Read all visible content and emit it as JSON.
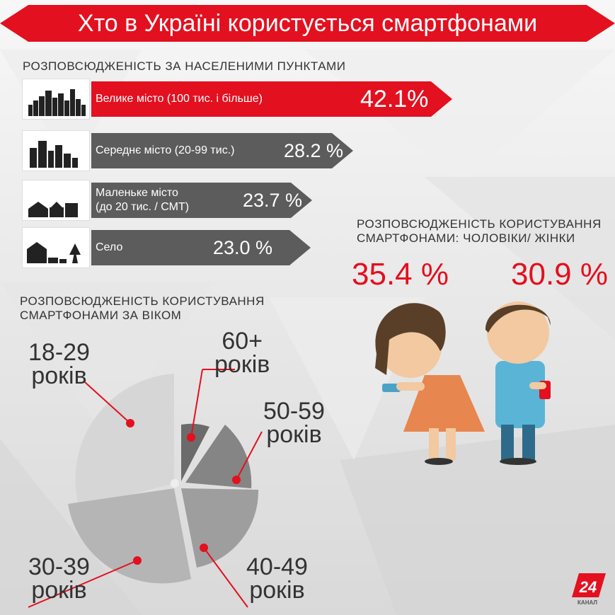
{
  "title": "Хто в Україні користується смартфонами",
  "settlements": {
    "heading": "РОЗПОВСЮДЖЕНІСТЬ ЗА НАСЕЛЕНИМИ ПУНКТАМИ",
    "items": [
      {
        "label_1": "Велике місто (100 тис. і більше)",
        "label_2": "",
        "value": "42.1%",
        "icon": "big-city-icon"
      },
      {
        "label_1": "Середнє місто (20-99 тис.)",
        "label_2": "",
        "value": "28.2 %",
        "icon": "medium-city-icon"
      },
      {
        "label_1": "Маленьке місто",
        "label_2": "(до 20 тис. / СМТ)",
        "value": "23.7 %",
        "icon": "small-town-icon"
      },
      {
        "label_1": "Село",
        "label_2": "",
        "value": "23.0 %",
        "icon": "village-icon"
      }
    ]
  },
  "gender": {
    "heading_1": "РОЗПОВСЮДЖЕНІСТЬ КОРИСТУВАННЯ",
    "heading_2": "СМАРТФОНАМИ: ЧОЛОВІКИ/ ЖІНКИ",
    "male": "35.4 %",
    "female": "30.9 %"
  },
  "age": {
    "heading_1": "РОЗПОВСЮДЖЕНІСТЬ КОРИСТУВАННЯ",
    "heading_2": "СМАРТФОНАМИ ЗА ВІКОМ",
    "groups": [
      {
        "range": "18-29",
        "unit": "років"
      },
      {
        "range": "60+",
        "unit": "років"
      },
      {
        "range": "50-59",
        "unit": "років"
      },
      {
        "range": "40-49",
        "unit": "років"
      },
      {
        "range": "30-39",
        "unit": "років"
      }
    ]
  },
  "logo": {
    "number": "24",
    "text": "КАНАЛ"
  },
  "colors": {
    "accent": "#e3101f",
    "bar_grey": "#5c5c5c"
  },
  "chart_data": {
    "type": "bar",
    "categories": [
      "Велике місто (100 тис. і більше)",
      "Середнє місто (20-99 тис.)",
      "Маленьке місто (до 20 тис. / СМТ)",
      "Село"
    ],
    "values": [
      42.1,
      28.2,
      23.7,
      23.0
    ],
    "title": "РОЗПОВСЮДЖЕНІСТЬ ЗА НАСЕЛЕНИМИ ПУНКТАМИ",
    "orientation": "horizontal"
  }
}
